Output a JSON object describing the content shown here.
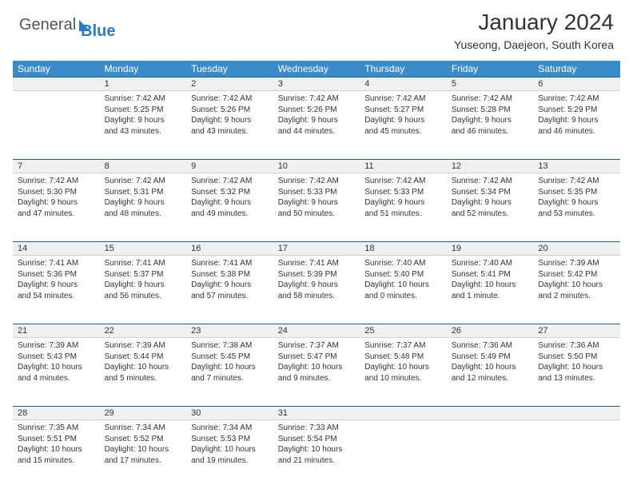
{
  "brand": {
    "part1": "General",
    "part2": "Blue"
  },
  "title": "January 2024",
  "subtitle": "Yuseong, Daejeon, South Korea",
  "colors": {
    "header_bg": "#3b8bc9",
    "header_text": "#ffffff",
    "daynum_bg": "#eef0f2",
    "border_top": "#2a5a85",
    "text": "#333333",
    "logo_gray": "#555555",
    "logo_blue": "#2e7cc0",
    "page_bg": "#ffffff"
  },
  "fonts": {
    "body_size": 10,
    "daynum_size": 11,
    "header_size": 12,
    "title_size": 28,
    "subtitle_size": 14
  },
  "weekdays": [
    "Sunday",
    "Monday",
    "Tuesday",
    "Wednesday",
    "Thursday",
    "Friday",
    "Saturday"
  ],
  "weeks": [
    {
      "nums": [
        "",
        "1",
        "2",
        "3",
        "4",
        "5",
        "6"
      ],
      "cells": [
        null,
        {
          "sunrise": "Sunrise: 7:42 AM",
          "sunset": "Sunset: 5:25 PM",
          "day1": "Daylight: 9 hours",
          "day2": "and 43 minutes."
        },
        {
          "sunrise": "Sunrise: 7:42 AM",
          "sunset": "Sunset: 5:26 PM",
          "day1": "Daylight: 9 hours",
          "day2": "and 43 minutes."
        },
        {
          "sunrise": "Sunrise: 7:42 AM",
          "sunset": "Sunset: 5:26 PM",
          "day1": "Daylight: 9 hours",
          "day2": "and 44 minutes."
        },
        {
          "sunrise": "Sunrise: 7:42 AM",
          "sunset": "Sunset: 5:27 PM",
          "day1": "Daylight: 9 hours",
          "day2": "and 45 minutes."
        },
        {
          "sunrise": "Sunrise: 7:42 AM",
          "sunset": "Sunset: 5:28 PM",
          "day1": "Daylight: 9 hours",
          "day2": "and 46 minutes."
        },
        {
          "sunrise": "Sunrise: 7:42 AM",
          "sunset": "Sunset: 5:29 PM",
          "day1": "Daylight: 9 hours",
          "day2": "and 46 minutes."
        }
      ]
    },
    {
      "nums": [
        "7",
        "8",
        "9",
        "10",
        "11",
        "12",
        "13"
      ],
      "cells": [
        {
          "sunrise": "Sunrise: 7:42 AM",
          "sunset": "Sunset: 5:30 PM",
          "day1": "Daylight: 9 hours",
          "day2": "and 47 minutes."
        },
        {
          "sunrise": "Sunrise: 7:42 AM",
          "sunset": "Sunset: 5:31 PM",
          "day1": "Daylight: 9 hours",
          "day2": "and 48 minutes."
        },
        {
          "sunrise": "Sunrise: 7:42 AM",
          "sunset": "Sunset: 5:32 PM",
          "day1": "Daylight: 9 hours",
          "day2": "and 49 minutes."
        },
        {
          "sunrise": "Sunrise: 7:42 AM",
          "sunset": "Sunset: 5:33 PM",
          "day1": "Daylight: 9 hours",
          "day2": "and 50 minutes."
        },
        {
          "sunrise": "Sunrise: 7:42 AM",
          "sunset": "Sunset: 5:33 PM",
          "day1": "Daylight: 9 hours",
          "day2": "and 51 minutes."
        },
        {
          "sunrise": "Sunrise: 7:42 AM",
          "sunset": "Sunset: 5:34 PM",
          "day1": "Daylight: 9 hours",
          "day2": "and 52 minutes."
        },
        {
          "sunrise": "Sunrise: 7:42 AM",
          "sunset": "Sunset: 5:35 PM",
          "day1": "Daylight: 9 hours",
          "day2": "and 53 minutes."
        }
      ]
    },
    {
      "nums": [
        "14",
        "15",
        "16",
        "17",
        "18",
        "19",
        "20"
      ],
      "cells": [
        {
          "sunrise": "Sunrise: 7:41 AM",
          "sunset": "Sunset: 5:36 PM",
          "day1": "Daylight: 9 hours",
          "day2": "and 54 minutes."
        },
        {
          "sunrise": "Sunrise: 7:41 AM",
          "sunset": "Sunset: 5:37 PM",
          "day1": "Daylight: 9 hours",
          "day2": "and 56 minutes."
        },
        {
          "sunrise": "Sunrise: 7:41 AM",
          "sunset": "Sunset: 5:38 PM",
          "day1": "Daylight: 9 hours",
          "day2": "and 57 minutes."
        },
        {
          "sunrise": "Sunrise: 7:41 AM",
          "sunset": "Sunset: 5:39 PM",
          "day1": "Daylight: 9 hours",
          "day2": "and 58 minutes."
        },
        {
          "sunrise": "Sunrise: 7:40 AM",
          "sunset": "Sunset: 5:40 PM",
          "day1": "Daylight: 10 hours",
          "day2": "and 0 minutes."
        },
        {
          "sunrise": "Sunrise: 7:40 AM",
          "sunset": "Sunset: 5:41 PM",
          "day1": "Daylight: 10 hours",
          "day2": "and 1 minute."
        },
        {
          "sunrise": "Sunrise: 7:39 AM",
          "sunset": "Sunset: 5:42 PM",
          "day1": "Daylight: 10 hours",
          "day2": "and 2 minutes."
        }
      ]
    },
    {
      "nums": [
        "21",
        "22",
        "23",
        "24",
        "25",
        "26",
        "27"
      ],
      "cells": [
        {
          "sunrise": "Sunrise: 7:39 AM",
          "sunset": "Sunset: 5:43 PM",
          "day1": "Daylight: 10 hours",
          "day2": "and 4 minutes."
        },
        {
          "sunrise": "Sunrise: 7:39 AM",
          "sunset": "Sunset: 5:44 PM",
          "day1": "Daylight: 10 hours",
          "day2": "and 5 minutes."
        },
        {
          "sunrise": "Sunrise: 7:38 AM",
          "sunset": "Sunset: 5:45 PM",
          "day1": "Daylight: 10 hours",
          "day2": "and 7 minutes."
        },
        {
          "sunrise": "Sunrise: 7:37 AM",
          "sunset": "Sunset: 5:47 PM",
          "day1": "Daylight: 10 hours",
          "day2": "and 9 minutes."
        },
        {
          "sunrise": "Sunrise: 7:37 AM",
          "sunset": "Sunset: 5:48 PM",
          "day1": "Daylight: 10 hours",
          "day2": "and 10 minutes."
        },
        {
          "sunrise": "Sunrise: 7:36 AM",
          "sunset": "Sunset: 5:49 PM",
          "day1": "Daylight: 10 hours",
          "day2": "and 12 minutes."
        },
        {
          "sunrise": "Sunrise: 7:36 AM",
          "sunset": "Sunset: 5:50 PM",
          "day1": "Daylight: 10 hours",
          "day2": "and 13 minutes."
        }
      ]
    },
    {
      "nums": [
        "28",
        "29",
        "30",
        "31",
        "",
        "",
        ""
      ],
      "cells": [
        {
          "sunrise": "Sunrise: 7:35 AM",
          "sunset": "Sunset: 5:51 PM",
          "day1": "Daylight: 10 hours",
          "day2": "and 15 minutes."
        },
        {
          "sunrise": "Sunrise: 7:34 AM",
          "sunset": "Sunset: 5:52 PM",
          "day1": "Daylight: 10 hours",
          "day2": "and 17 minutes."
        },
        {
          "sunrise": "Sunrise: 7:34 AM",
          "sunset": "Sunset: 5:53 PM",
          "day1": "Daylight: 10 hours",
          "day2": "and 19 minutes."
        },
        {
          "sunrise": "Sunrise: 7:33 AM",
          "sunset": "Sunset: 5:54 PM",
          "day1": "Daylight: 10 hours",
          "day2": "and 21 minutes."
        },
        null,
        null,
        null
      ]
    }
  ]
}
